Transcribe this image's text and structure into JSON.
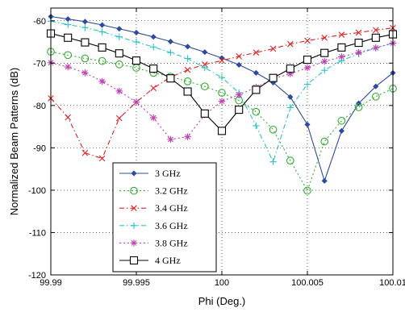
{
  "chart_data": {
    "type": "line",
    "xlabel": "Phi (Deg.)",
    "ylabel": "Normalized Beam Patterns (dB)",
    "xlim": [
      99.99,
      100.01
    ],
    "ylim": [
      -120,
      -57
    ],
    "xticks": [
      99.99,
      99.995,
      100,
      100.005,
      100.01
    ],
    "xtick_labels": [
      "99.99",
      "99.995",
      "100",
      "100.005",
      "100.01"
    ],
    "yticks": [
      -120,
      -110,
      -100,
      -90,
      -80,
      -70,
      -60
    ],
    "ytick_labels": [
      "-120",
      "-110",
      "-100",
      "-90",
      "-80",
      "-70",
      "-60"
    ],
    "grid": true,
    "legend_position": "bottom-left",
    "series": [
      {
        "name": "3 GHz",
        "color": "#2e4a9e",
        "linestyle": "solid",
        "marker": "diamond",
        "x": [
          99.99,
          99.991,
          99.992,
          99.993,
          99.994,
          99.995,
          99.996,
          99.997,
          99.998,
          99.999,
          100,
          100.001,
          100.002,
          100.003,
          100.004,
          100.005,
          100.006,
          100.007,
          100.008,
          100.009,
          100.01
        ],
        "y": [
          -59,
          -59.6,
          -60.2,
          -61,
          -61.9,
          -62.8,
          -63.8,
          -64.9,
          -66.1,
          -67.4,
          -68.8,
          -70.4,
          -72.3,
          -74.6,
          -78,
          -84.5,
          -97.8,
          -86,
          -79.5,
          -75.5,
          -72.3
        ]
      },
      {
        "name": "3.2 GHz",
        "color": "#2fae2f",
        "linestyle": "dotted",
        "marker": "circle",
        "x": [
          99.99,
          99.991,
          99.992,
          99.993,
          99.994,
          99.995,
          99.996,
          99.997,
          99.998,
          99.999,
          100,
          100.001,
          100.002,
          100.003,
          100.004,
          100.005,
          100.006,
          100.007,
          100.008,
          100.009,
          100.01
        ],
        "y": [
          -67.3,
          -68.1,
          -68.9,
          -69.5,
          -70.3,
          -71.1,
          -72.3,
          -73.2,
          -74.3,
          -75.5,
          -77,
          -78.8,
          -81.5,
          -85.7,
          -93,
          -100.1,
          -88.5,
          -83.6,
          -80.4,
          -77.9,
          -76
        ]
      },
      {
        "name": "3.4 GHz",
        "color": "#e02020",
        "linestyle": "dashdot",
        "marker": "x",
        "x": [
          99.99,
          99.991,
          99.992,
          99.993,
          99.994,
          99.995,
          99.996,
          99.997,
          99.998,
          99.999,
          100,
          100.001,
          100.002,
          100.003,
          100.004,
          100.005,
          100.006,
          100.007,
          100.008,
          100.009,
          100.01
        ],
        "y": [
          -78.3,
          -82.8,
          -91.2,
          -92.5,
          -83,
          -79.2,
          -75.9,
          -73.3,
          -71.6,
          -70.3,
          -69.4,
          -68.4,
          -67.5,
          -66.6,
          -65.5,
          -64.7,
          -64,
          -63.3,
          -62.8,
          -62.2,
          -61.7
        ]
      },
      {
        "name": "3.6 GHz",
        "color": "#2cc4c4",
        "linestyle": "dashdot",
        "marker": "plus",
        "x": [
          99.99,
          99.991,
          99.992,
          99.993,
          99.994,
          99.995,
          99.996,
          99.997,
          99.998,
          99.999,
          100,
          100.001,
          100.002,
          100.003,
          100.004,
          100.005,
          100.006,
          100.007,
          100.008,
          100.009,
          100.01
        ],
        "y": [
          -60.1,
          -60.9,
          -61.6,
          -62.6,
          -63.8,
          -65,
          -66.2,
          -67.5,
          -68.9,
          -71.1,
          -73.4,
          -77,
          -84.8,
          -93.3,
          -80.5,
          -75,
          -71.7,
          -69.4,
          -67.8,
          -66.4,
          -65.3
        ]
      },
      {
        "name": "3.8 GHz",
        "color": "#c040b0",
        "linestyle": "dotted",
        "marker": "asterisk",
        "x": [
          99.99,
          99.991,
          99.992,
          99.993,
          99.994,
          99.995,
          99.996,
          99.997,
          99.998,
          99.999,
          100,
          100.001,
          100.002,
          100.003,
          100.004,
          100.005,
          100.006,
          100.007,
          100.008,
          100.009,
          100.01
        ],
        "y": [
          -69.9,
          -70.9,
          -72.3,
          -74.3,
          -76.6,
          -79.2,
          -82.9,
          -88,
          -87.4,
          -82.2,
          -79,
          -77.5,
          -75.7,
          -73.7,
          -72.5,
          -71.1,
          -69.6,
          -68.5,
          -67.5,
          -66.4,
          -65.3
        ]
      },
      {
        "name": "4 GHz",
        "color": "#000000",
        "linestyle": "solid",
        "marker": "square",
        "x": [
          99.99,
          99.991,
          99.992,
          99.993,
          99.994,
          99.995,
          99.996,
          99.997,
          99.998,
          99.999,
          100,
          100.001,
          100.002,
          100.003,
          100.004,
          100.005,
          100.006,
          100.007,
          100.008,
          100.009,
          100.01
        ],
        "y": [
          -63,
          -64,
          -65.1,
          -66.3,
          -67.7,
          -69.4,
          -71.3,
          -73.6,
          -76.7,
          -81.9,
          -86,
          -81,
          -76.3,
          -73.5,
          -71.3,
          -69.2,
          -67.6,
          -66.3,
          -65.2,
          -64,
          -63.2
        ]
      }
    ]
  }
}
